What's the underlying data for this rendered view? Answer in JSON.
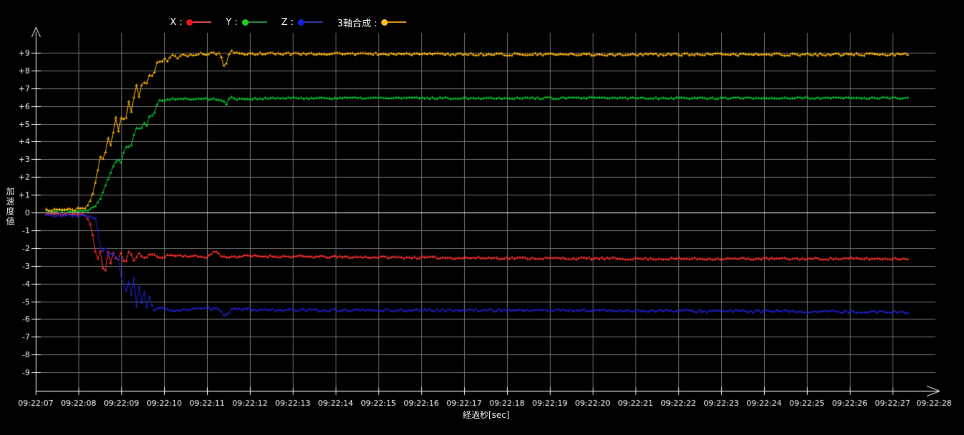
{
  "legend": {
    "items": [
      {
        "id": "x",
        "label": "X :",
        "color": "#ee1515",
        "line_color": "#ff5555"
      },
      {
        "id": "y",
        "label": "Y :",
        "color": "#22cc22",
        "line_color": "#2f9e4f"
      },
      {
        "id": "z",
        "label": "Z :",
        "color": "#1522e0",
        "line_color": "#3344aa"
      },
      {
        "id": "composite",
        "label": "3軸合成 :",
        "color": "#ffc020",
        "line_color": "#ffaa22"
      }
    ]
  },
  "axes": {
    "ylabel": "加速度値",
    "xlabel": "経過秒[sec]",
    "y_tick_labels": [
      "+9",
      "+8",
      "+7",
      "+6",
      "+5",
      "+4",
      "+3",
      "+2",
      "+1",
      "0",
      "-1",
      "-2",
      "-3",
      "-4",
      "-5",
      "-6",
      "-7",
      "-8",
      "-9"
    ],
    "y_tick_values": [
      9,
      8,
      7,
      6,
      5,
      4,
      3,
      2,
      1,
      0,
      -1,
      -2,
      -3,
      -4,
      -5,
      -6,
      -7,
      -8,
      -9
    ],
    "x_tick_labels": [
      "09:22:07",
      "09:22:08",
      "09:22:09",
      "09:22:10",
      "09:22:11",
      "09:22:12",
      "09:22:13",
      "09:22:14",
      "09:22:15",
      "09:22:16",
      "09:22:17",
      "09:22:18",
      "09:22:19",
      "09:22:20",
      "09:22:21",
      "09:22:22",
      "09:22:23",
      "09:22:24",
      "09:22:25",
      "09:22:26",
      "09:22:27",
      "09:22:28"
    ]
  },
  "chart_data": {
    "type": "line",
    "title": "",
    "xlabel": "経過秒[sec]",
    "ylabel": "加速度値",
    "ylim": [
      -9,
      9
    ],
    "xlim_seconds": [
      0,
      21
    ],
    "x_tick_interval_seconds": 1,
    "grid": true,
    "grid_color": "#787878",
    "axis_color": "#ffffff",
    "background": "#000000",
    "legend_position": "top",
    "data_start_seconds": 0.25,
    "data_end_seconds": 20.4,
    "sample_step_seconds": 0.06,
    "marker": "plus",
    "series": [
      {
        "name": "X",
        "color": "#ff3030",
        "noise": 0.06,
        "seed": 11,
        "keyframes": [
          [
            0.25,
            -0.08
          ],
          [
            1.15,
            -0.12
          ],
          [
            1.25,
            -0.45
          ],
          [
            1.32,
            -1.1
          ],
          [
            1.38,
            -2.1
          ],
          [
            1.45,
            -2.6
          ],
          [
            1.5,
            -1.9
          ],
          [
            1.55,
            -3.0
          ],
          [
            1.62,
            -3.5
          ],
          [
            1.68,
            -2.1
          ],
          [
            1.75,
            -2.9
          ],
          [
            1.82,
            -2.2
          ],
          [
            1.9,
            -2.85
          ],
          [
            1.98,
            -2.2
          ],
          [
            2.08,
            -2.9
          ],
          [
            2.18,
            -2.15
          ],
          [
            2.28,
            -2.7
          ],
          [
            2.4,
            -2.3
          ],
          [
            2.55,
            -2.6
          ],
          [
            2.7,
            -2.3
          ],
          [
            2.85,
            -2.55
          ],
          [
            3.1,
            -2.4
          ],
          [
            3.6,
            -2.45
          ],
          [
            4.0,
            -2.5
          ],
          [
            4.2,
            -2.15
          ],
          [
            4.35,
            -2.5
          ],
          [
            5.0,
            -2.45
          ],
          [
            7.0,
            -2.5
          ],
          [
            10.0,
            -2.55
          ],
          [
            14.0,
            -2.6
          ],
          [
            20.4,
            -2.6
          ]
        ]
      },
      {
        "name": "Z",
        "color": "#2020cc",
        "noise": 0.07,
        "seed": 33,
        "keyframes": [
          [
            0.25,
            -0.15
          ],
          [
            1.3,
            -0.2
          ],
          [
            1.42,
            -0.35
          ],
          [
            1.48,
            -1.7
          ],
          [
            1.55,
            -2.3
          ],
          [
            1.62,
            -1.95
          ],
          [
            1.7,
            -2.5
          ],
          [
            1.78,
            -2.2
          ],
          [
            1.85,
            -2.6
          ],
          [
            1.92,
            -2.45
          ],
          [
            1.98,
            -3.4
          ],
          [
            2.03,
            -4.5
          ],
          [
            2.08,
            -3.45
          ],
          [
            2.13,
            -5.1
          ],
          [
            2.18,
            -3.6
          ],
          [
            2.24,
            -4.9
          ],
          [
            2.29,
            -3.75
          ],
          [
            2.35,
            -5.3
          ],
          [
            2.4,
            -4.0
          ],
          [
            2.46,
            -5.15
          ],
          [
            2.52,
            -4.3
          ],
          [
            2.58,
            -5.4
          ],
          [
            2.64,
            -4.7
          ],
          [
            2.72,
            -5.35
          ],
          [
            2.8,
            -5.5
          ],
          [
            2.9,
            -5.4
          ],
          [
            3.1,
            -5.5
          ],
          [
            4.2,
            -5.4
          ],
          [
            4.4,
            -5.75
          ],
          [
            4.6,
            -5.45
          ],
          [
            6.0,
            -5.5
          ],
          [
            12.0,
            -5.5
          ],
          [
            16.0,
            -5.55
          ],
          [
            20.4,
            -5.6
          ]
        ]
      },
      {
        "name": "Y",
        "color": "#00c832",
        "noise": 0.055,
        "seed": 22,
        "keyframes": [
          [
            0.25,
            0.1
          ],
          [
            1.2,
            0.12
          ],
          [
            1.4,
            0.35
          ],
          [
            1.55,
            1.0
          ],
          [
            1.65,
            1.7
          ],
          [
            1.75,
            2.3
          ],
          [
            1.85,
            2.8
          ],
          [
            1.92,
            3.05
          ],
          [
            1.98,
            2.75
          ],
          [
            2.08,
            3.6
          ],
          [
            2.14,
            3.9
          ],
          [
            2.2,
            3.55
          ],
          [
            2.3,
            4.5
          ],
          [
            2.38,
            4.95
          ],
          [
            2.44,
            4.6
          ],
          [
            2.52,
            5.1
          ],
          [
            2.58,
            4.85
          ],
          [
            2.66,
            5.55
          ],
          [
            2.72,
            5.45
          ],
          [
            2.8,
            5.8
          ],
          [
            2.86,
            6.3
          ],
          [
            2.95,
            6.35
          ],
          [
            3.2,
            6.4
          ],
          [
            4.3,
            6.4
          ],
          [
            4.45,
            6.1
          ],
          [
            4.55,
            6.55
          ],
          [
            4.7,
            6.4
          ],
          [
            6.0,
            6.45
          ],
          [
            12.0,
            6.45
          ],
          [
            20.4,
            6.45
          ]
        ]
      },
      {
        "name": "3軸合成",
        "color": "#ffb400",
        "noise": 0.07,
        "seed": 44,
        "keyframes": [
          [
            0.25,
            0.15
          ],
          [
            1.1,
            0.2
          ],
          [
            1.25,
            0.5
          ],
          [
            1.35,
            1.2
          ],
          [
            1.45,
            2.4
          ],
          [
            1.52,
            3.3
          ],
          [
            1.58,
            2.9
          ],
          [
            1.65,
            3.7
          ],
          [
            1.7,
            4.35
          ],
          [
            1.76,
            3.6
          ],
          [
            1.82,
            4.7
          ],
          [
            1.87,
            5.3
          ],
          [
            1.92,
            4.45
          ],
          [
            1.98,
            5.25
          ],
          [
            2.03,
            5.6
          ],
          [
            2.08,
            4.85
          ],
          [
            2.14,
            5.9
          ],
          [
            2.19,
            6.5
          ],
          [
            2.24,
            5.5
          ],
          [
            2.3,
            6.7
          ],
          [
            2.35,
            7.25
          ],
          [
            2.4,
            6.35
          ],
          [
            2.46,
            7.1
          ],
          [
            2.51,
            7.55
          ],
          [
            2.56,
            6.95
          ],
          [
            2.62,
            7.65
          ],
          [
            2.68,
            7.95
          ],
          [
            2.73,
            7.5
          ],
          [
            2.8,
            8.25
          ],
          [
            2.86,
            8.6
          ],
          [
            2.92,
            8.3
          ],
          [
            3.0,
            8.7
          ],
          [
            3.08,
            8.5
          ],
          [
            3.18,
            8.9
          ],
          [
            3.3,
            8.7
          ],
          [
            3.45,
            8.9
          ],
          [
            3.6,
            8.85
          ],
          [
            3.8,
            8.95
          ],
          [
            4.3,
            8.95
          ],
          [
            4.42,
            8.1
          ],
          [
            4.5,
            8.85
          ],
          [
            4.58,
            9.1
          ],
          [
            4.7,
            8.95
          ],
          [
            6.0,
            8.95
          ],
          [
            12.0,
            8.9
          ],
          [
            20.4,
            8.9
          ]
        ]
      }
    ]
  }
}
